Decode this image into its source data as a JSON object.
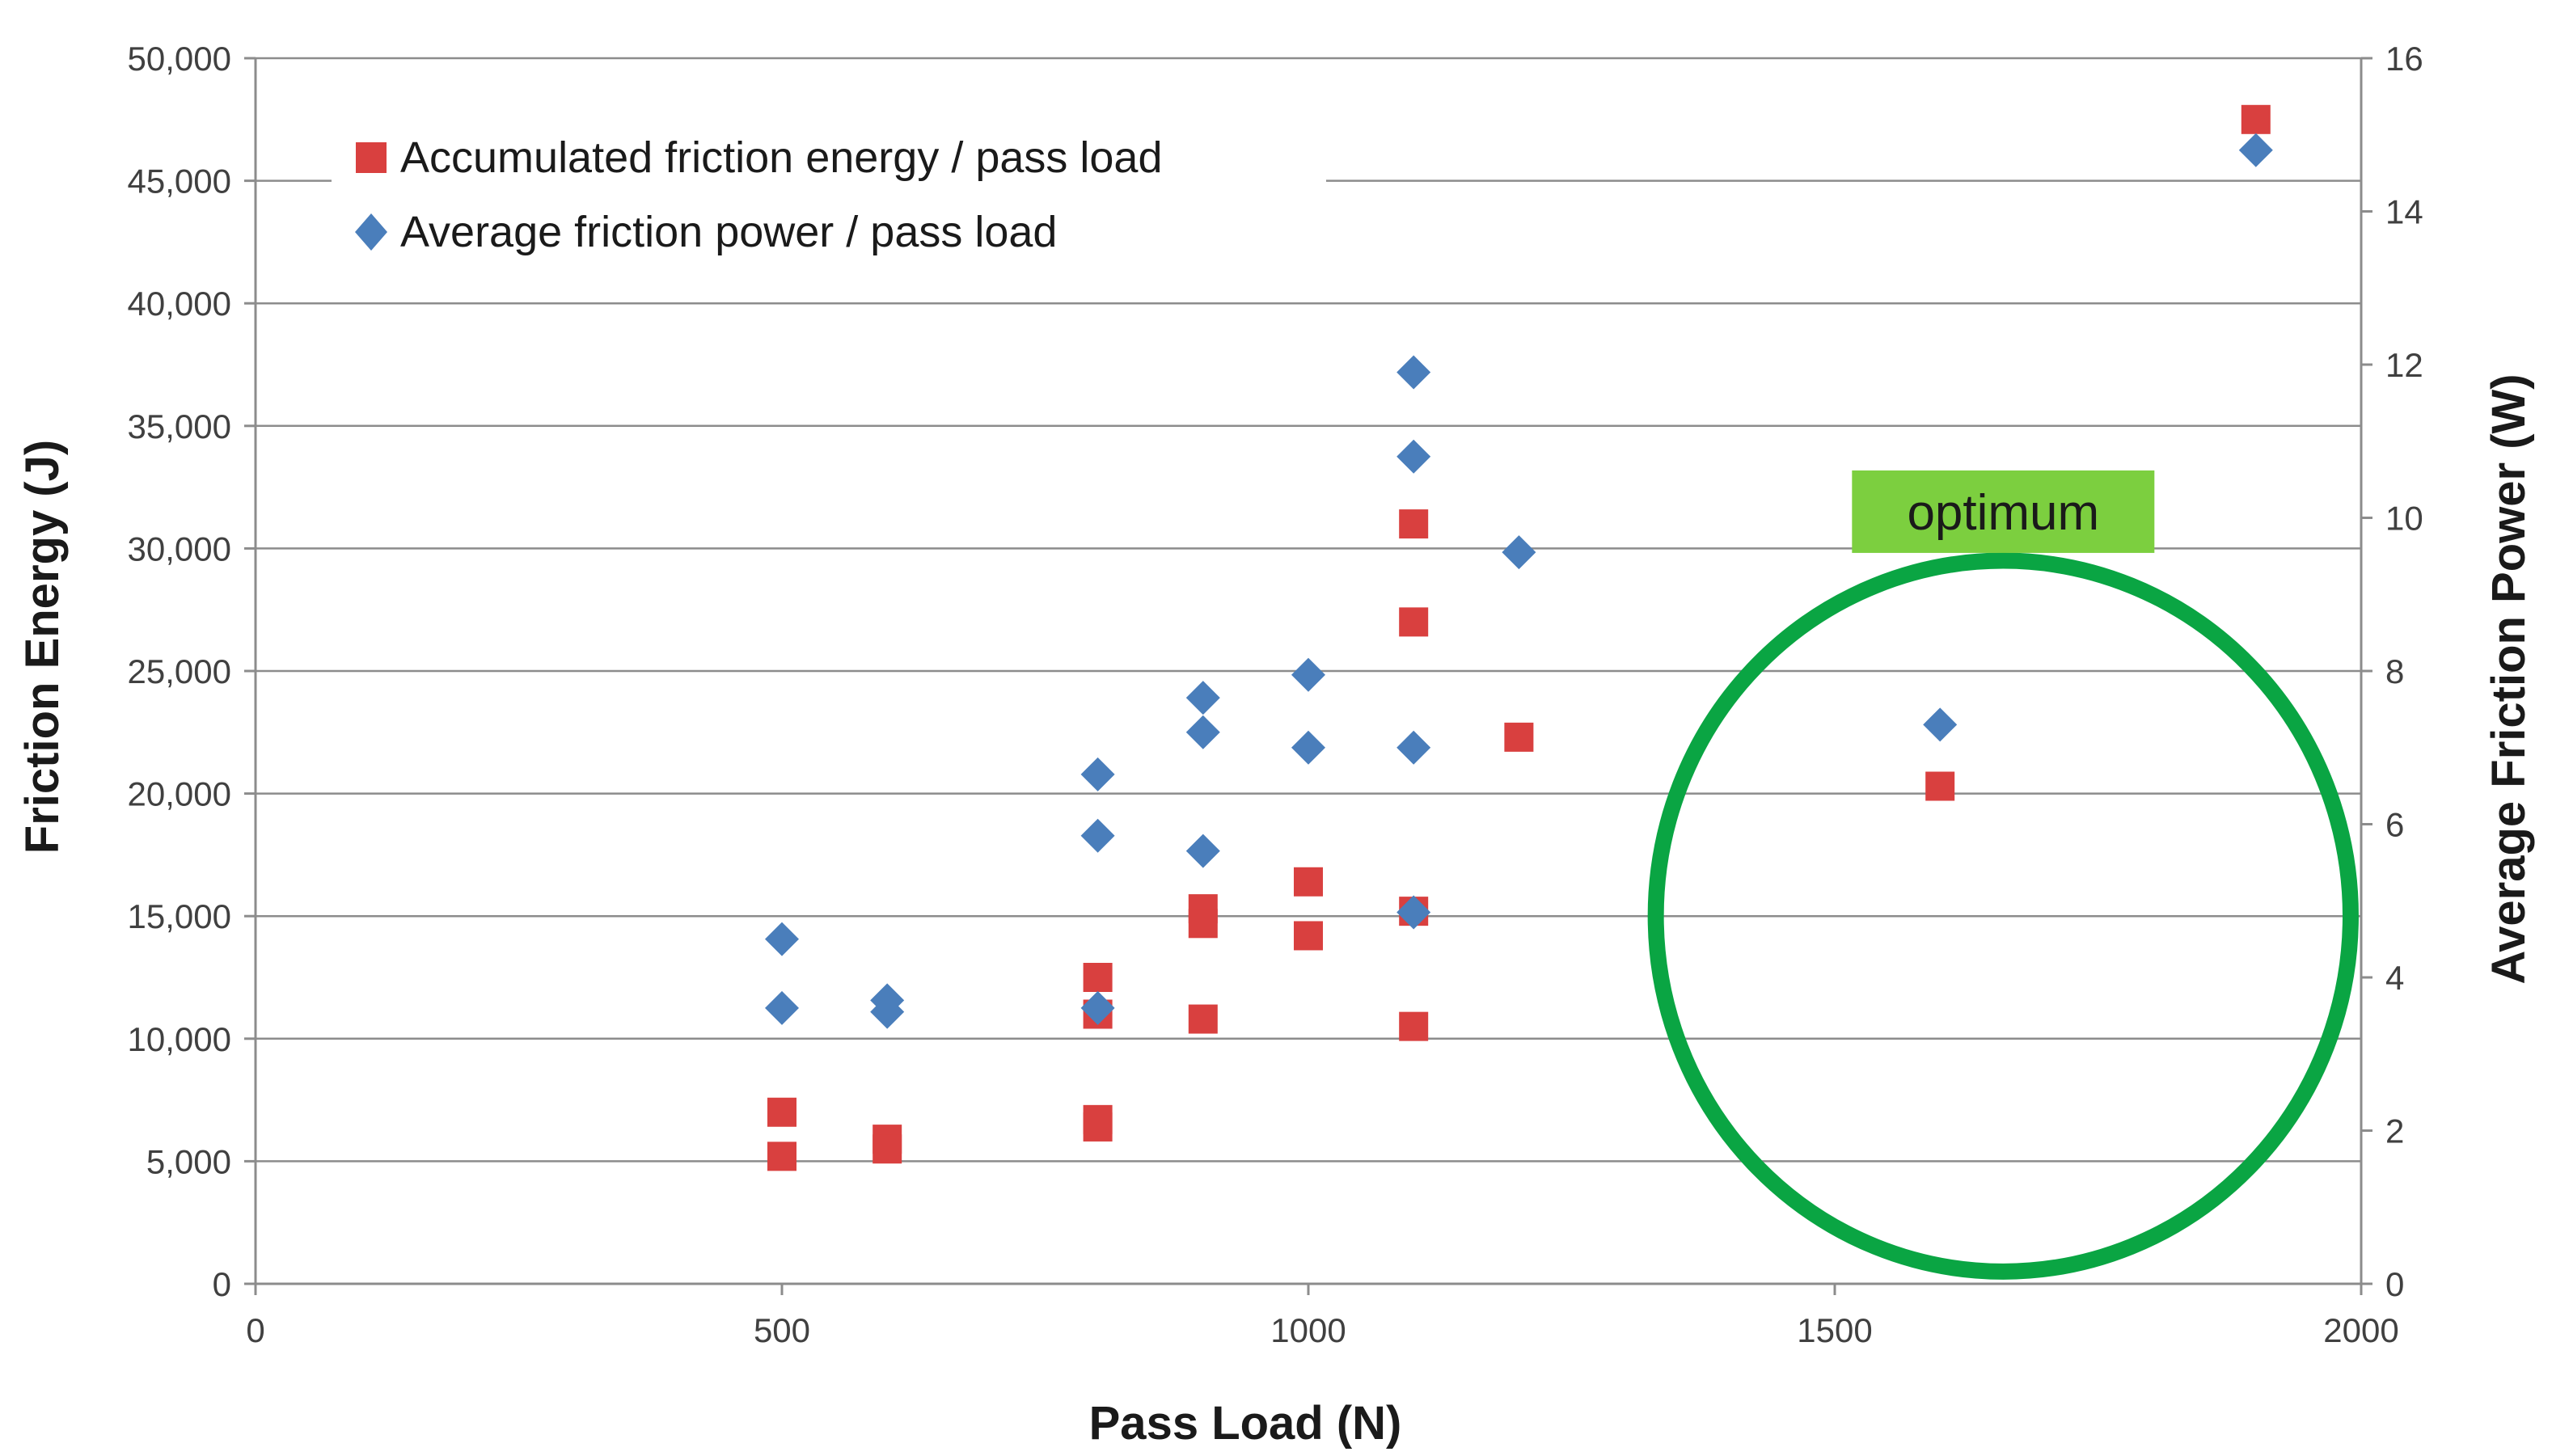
{
  "chart_data": {
    "type": "scatter",
    "xlabel": "Pass Load (N)",
    "ylabel": "Friction Energy (J)",
    "y2label": "Average Friction Power (W)",
    "xlim": [
      0,
      2000
    ],
    "ylim": [
      0,
      50000
    ],
    "y2lim": [
      0,
      16
    ],
    "x_ticks": [
      0,
      500,
      1000,
      1500,
      2000
    ],
    "x_tick_labels": [
      "0",
      "500",
      "1000",
      "1500",
      "2000"
    ],
    "y_ticks": [
      0,
      5000,
      10000,
      15000,
      20000,
      25000,
      30000,
      35000,
      40000,
      45000,
      50000
    ],
    "y_tick_labels": [
      "0",
      "5,000",
      "10,000",
      "15,000",
      "20,000",
      "25,000",
      "30,000",
      "35,000",
      "40,000",
      "45,000",
      "50,000"
    ],
    "y2_ticks": [
      0,
      2,
      4,
      6,
      8,
      10,
      12,
      14,
      16
    ],
    "y2_tick_labels": [
      "0",
      "2",
      "4",
      "6",
      "8",
      "10",
      "12",
      "14",
      "16"
    ],
    "grid": "horizontal",
    "legend_position": "top-left",
    "series": [
      {
        "name": "Accumulated friction energy / pass load",
        "axis": "left",
        "marker": "square",
        "color": "#d9403f",
        "points": [
          [
            500,
            7000
          ],
          [
            500,
            5200
          ],
          [
            600,
            5900
          ],
          [
            600,
            5500
          ],
          [
            800,
            12500
          ],
          [
            800,
            11000
          ],
          [
            800,
            6700
          ],
          [
            800,
            6400
          ],
          [
            900,
            15300
          ],
          [
            900,
            14700
          ],
          [
            900,
            10800
          ],
          [
            1000,
            16400
          ],
          [
            1000,
            14200
          ],
          [
            1100,
            31000
          ],
          [
            1100,
            27000
          ],
          [
            1100,
            15200
          ],
          [
            1100,
            10500
          ],
          [
            1200,
            22300
          ],
          [
            1600,
            20300
          ],
          [
            1900,
            47500
          ]
        ]
      },
      {
        "name": "Average friction power / pass load",
        "axis": "right",
        "marker": "diamond",
        "color": "#4a7ebb",
        "points": [
          [
            500,
            4.5
          ],
          [
            500,
            3.6
          ],
          [
            600,
            3.7
          ],
          [
            600,
            3.55
          ],
          [
            800,
            6.65
          ],
          [
            800,
            5.85
          ],
          [
            800,
            3.6
          ],
          [
            900,
            7.65
          ],
          [
            900,
            7.2
          ],
          [
            900,
            5.65
          ],
          [
            1000,
            7.95
          ],
          [
            1000,
            7.0
          ],
          [
            1100,
            11.9
          ],
          [
            1100,
            10.8
          ],
          [
            1100,
            7.0
          ],
          [
            1100,
            4.85
          ],
          [
            1200,
            9.55
          ],
          [
            1600,
            7.3
          ],
          [
            1900,
            14.8
          ]
        ]
      }
    ],
    "annotations": [
      {
        "type": "ellipse",
        "center_x": 1660,
        "center_y": 15000,
        "radius_x": 330,
        "radius_y": 14500,
        "color": "#0aa543"
      },
      {
        "type": "label",
        "text": "optimum",
        "x": 1660,
        "y": 31500,
        "background": "#7ccf3f"
      }
    ]
  }
}
